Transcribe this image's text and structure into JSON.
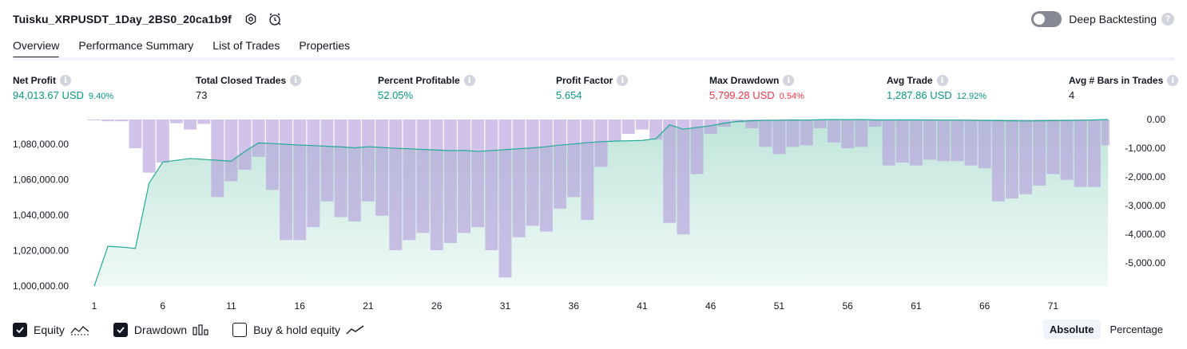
{
  "header": {
    "title": "Tuisku_XRPUSDT_1Day_2BS0_20ca1b9f",
    "deep_backtesting_label": "Deep Backtesting",
    "help_glyph": "?"
  },
  "tabs": [
    {
      "label": "Overview",
      "active": true
    },
    {
      "label": "Performance Summary",
      "active": false
    },
    {
      "label": "List of Trades",
      "active": false
    },
    {
      "label": "Properties",
      "active": false
    }
  ],
  "stats": {
    "info_glyph": "i",
    "net_profit": {
      "label": "Net Profit",
      "value": "94,013.67 USD",
      "pct": "9.40%",
      "color": "#089981"
    },
    "total_closed_trades": {
      "label": "Total Closed Trades",
      "value": "73"
    },
    "percent_profitable": {
      "label": "Percent Profitable",
      "value": "52.05%",
      "color": "#089981"
    },
    "profit_factor": {
      "label": "Profit Factor",
      "value": "5.654",
      "color": "#089981"
    },
    "max_drawdown": {
      "label": "Max Drawdown",
      "value": "5,799.28 USD",
      "pct": "0.54%",
      "color": "#f23645"
    },
    "avg_trade": {
      "label": "Avg Trade",
      "value": "1,287.86 USD",
      "pct": "12.92%",
      "color": "#089981"
    },
    "avg_bars": {
      "label": "Avg # Bars in Trades",
      "value": "4"
    }
  },
  "legend": {
    "equity": {
      "label": "Equity",
      "checked": true
    },
    "drawdown": {
      "label": "Drawdown",
      "checked": true
    },
    "buy_hold": {
      "label": "Buy & hold equity",
      "checked": false
    }
  },
  "mode": {
    "absolute_label": "Absolute",
    "percentage_label": "Percentage",
    "active": "absolute"
  },
  "colors": {
    "equity_line": "#22ab94",
    "drawdown_bar": "#b39ddb",
    "text_green": "#089981",
    "text_red": "#f23645"
  },
  "chart_data": {
    "type": "area",
    "x_ticks": [
      1,
      6,
      11,
      16,
      21,
      26,
      31,
      36,
      41,
      46,
      51,
      56,
      61,
      66,
      71
    ],
    "x_range": [
      1,
      75
    ],
    "left_axis": {
      "ticks": [
        1000000,
        1020000,
        1040000,
        1060000,
        1080000
      ],
      "tick_labels": [
        "1,000,000.00",
        "1,020,000.00",
        "1,040,000.00",
        "1,060,000.00",
        "1,080,000.00"
      ],
      "range": [
        1000000,
        1094013.67
      ]
    },
    "right_axis": {
      "ticks": [
        0,
        -1000,
        -2000,
        -3000,
        -4000,
        -5000
      ],
      "tick_labels": [
        "0.00",
        "-1,000.00",
        "-2,000.00",
        "-3,000.00",
        "-4,000.00",
        "-5,000.00"
      ],
      "range": [
        -5799.28,
        0
      ]
    },
    "series": [
      {
        "name": "Equity",
        "values": [
          1000000,
          1022500,
          1022000,
          1021200,
          1058000,
          1070000,
          1071000,
          1072000,
          1071500,
          1071000,
          1070500,
          1076000,
          1080800,
          1080500,
          1080000,
          1079600,
          1079300,
          1078900,
          1078600,
          1078000,
          1078700,
          1078200,
          1077800,
          1077500,
          1077100,
          1076800,
          1076400,
          1076600,
          1076000,
          1076500,
          1077000,
          1077500,
          1078000,
          1078700,
          1079600,
          1080200,
          1081000,
          1081500,
          1081800,
          1082000,
          1082200,
          1083200,
          1091000,
          1088600,
          1089500,
          1090500,
          1092000,
          1093000,
          1093300,
          1093600,
          1093600,
          1093800,
          1093700,
          1093900,
          1094000,
          1093900,
          1094000,
          1093800,
          1093800,
          1093800,
          1093800,
          1093800,
          1093700,
          1093700,
          1093600,
          1093500,
          1093400,
          1093300,
          1093200,
          1093300,
          1093400,
          1093500,
          1093600,
          1093800,
          1094000
        ]
      },
      {
        "name": "Drawdown",
        "values": [
          0,
          -60,
          -60,
          -1000,
          -1850,
          -1500,
          -130,
          -350,
          -150,
          -2700,
          -2150,
          -1750,
          -1300,
          -2450,
          -4200,
          -4200,
          -3750,
          -2850,
          -3400,
          -3550,
          -2850,
          -3350,
          -4550,
          -4200,
          -3950,
          -4550,
          -4300,
          -3950,
          -3750,
          -4550,
          -5500,
          -4100,
          -3700,
          -3900,
          -3100,
          -2700,
          -3500,
          -1650,
          -750,
          -500,
          -350,
          -700,
          -3600,
          -4000,
          -1900,
          -500,
          -250,
          -100,
          -300,
          -950,
          -1200,
          -950,
          -900,
          -300,
          -800,
          -1000,
          -950,
          -250,
          -1600,
          -1500,
          -1600,
          -1400,
          -1450,
          -1450,
          -1600,
          -1700,
          -2850,
          -2750,
          -2600,
          -2300,
          -1900,
          -2100,
          -2350,
          -2350,
          -900
        ]
      }
    ]
  }
}
